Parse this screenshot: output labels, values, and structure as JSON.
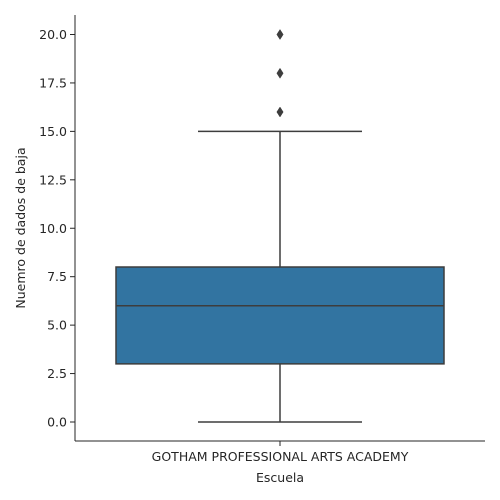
{
  "chart_data": {
    "type": "box",
    "xlabel": "Escuela",
    "ylabel": "Nuemro de dados de baja",
    "categories": [
      "GOTHAM PROFESSIONAL ARTS ACADEMY"
    ],
    "ylim": [
      -1,
      21
    ],
    "yticks": [
      0.0,
      2.5,
      5.0,
      7.5,
      10.0,
      12.5,
      15.0,
      17.5,
      20.0
    ],
    "ytick_labels": [
      "0.0",
      "2.5",
      "5.0",
      "7.5",
      "10.0",
      "12.5",
      "15.0",
      "17.5",
      "20.0"
    ],
    "grid": false,
    "box_color": "#3274a1",
    "line_color": "#3d3d3d",
    "boxes": [
      {
        "category": "GOTHAM PROFESSIONAL ARTS ACADEMY",
        "whisker_low": 0,
        "q1": 3,
        "median": 6,
        "q3": 8,
        "whisker_high": 15,
        "outliers": [
          16,
          18,
          20
        ]
      }
    ]
  }
}
